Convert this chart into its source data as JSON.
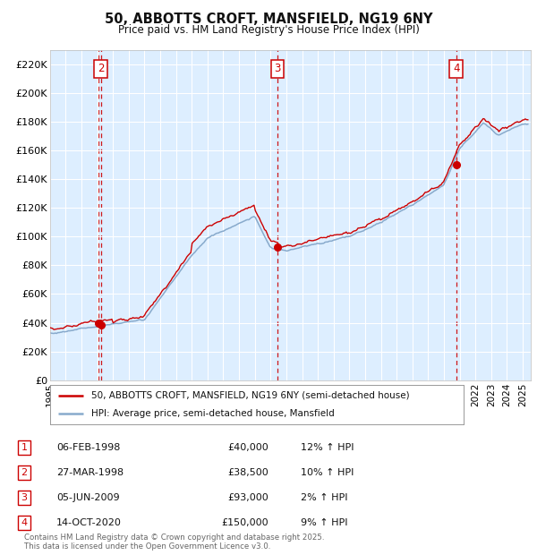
{
  "title_line1": "50, ABBOTTS CROFT, MANSFIELD, NG19 6NY",
  "title_line2": "Price paid vs. HM Land Registry's House Price Index (HPI)",
  "background_color": "#ffffff",
  "plot_bg_color": "#ddeeff",
  "grid_color": "#ffffff",
  "hpi_line_color": "#88aacc",
  "price_line_color": "#cc0000",
  "ylim": [
    0,
    230000
  ],
  "yticks": [
    0,
    20000,
    40000,
    60000,
    80000,
    100000,
    120000,
    140000,
    160000,
    180000,
    200000,
    220000
  ],
  "ytick_labels": [
    "£0",
    "£20K",
    "£40K",
    "£60K",
    "£80K",
    "£100K",
    "£120K",
    "£140K",
    "£160K",
    "£180K",
    "£200K",
    "£220K"
  ],
  "xmin": 1995.0,
  "xmax": 2025.5,
  "xticks": [
    1995,
    1996,
    1997,
    1998,
    1999,
    2000,
    2001,
    2002,
    2003,
    2004,
    2005,
    2006,
    2007,
    2008,
    2009,
    2010,
    2011,
    2012,
    2013,
    2014,
    2015,
    2016,
    2017,
    2018,
    2019,
    2020,
    2021,
    2022,
    2023,
    2024,
    2025
  ],
  "sale_markers": [
    {
      "num": 1,
      "year": 1998.09,
      "price": 40000,
      "show_box": false
    },
    {
      "num": 2,
      "year": 1998.23,
      "price": 38500,
      "show_box": true
    },
    {
      "num": 3,
      "year": 2009.43,
      "price": 93000,
      "show_box": true
    },
    {
      "num": 4,
      "year": 2020.78,
      "price": 150000,
      "show_box": true
    }
  ],
  "legend_entries": [
    "50, ABBOTTS CROFT, MANSFIELD, NG19 6NY (semi-detached house)",
    "HPI: Average price, semi-detached house, Mansfield"
  ],
  "table_rows": [
    {
      "num": "1",
      "date": "06-FEB-1998",
      "price": "£40,000",
      "hpi": "12% ↑ HPI"
    },
    {
      "num": "2",
      "date": "27-MAR-1998",
      "price": "£38,500",
      "hpi": "10% ↑ HPI"
    },
    {
      "num": "3",
      "date": "05-JUN-2009",
      "price": "£93,000",
      "hpi": "2% ↑ HPI"
    },
    {
      "num": "4",
      "date": "14-OCT-2020",
      "price": "£150,000",
      "hpi": "9% ↑ HPI"
    }
  ],
  "footnote": "Contains HM Land Registry data © Crown copyright and database right 2025.\nThis data is licensed under the Open Government Licence v3.0."
}
